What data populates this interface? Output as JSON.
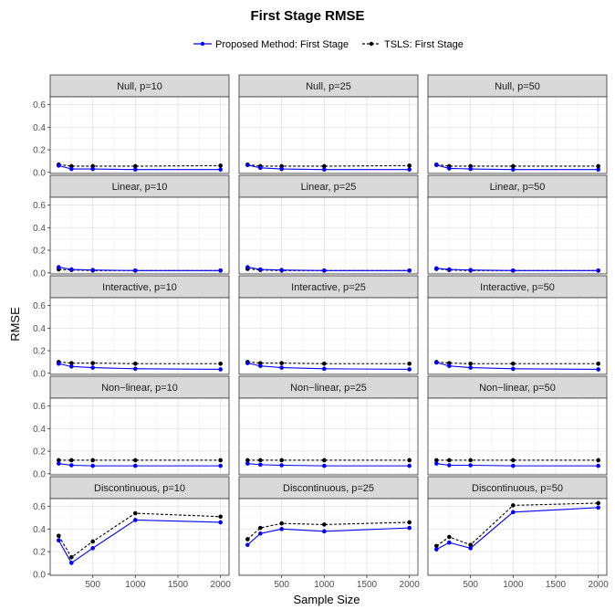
{
  "chart_data": {
    "type": "line",
    "title": "First Stage RMSE",
    "xlabel": "Sample Size",
    "ylabel": "RMSE",
    "legend_position": "top",
    "grid": true,
    "xlim": [
      0,
      2100
    ],
    "ylim": [
      -0.01,
      0.67
    ],
    "x_ticks": [
      500,
      1000,
      1500,
      2000
    ],
    "x_tick_labels": [
      "500",
      "1000",
      "1500",
      "2000"
    ],
    "y_ticks": [
      0,
      0.2,
      0.4,
      0.6
    ],
    "y_tick_labels": [
      "0.0",
      "0.2",
      "0.4",
      "0.6"
    ],
    "x": [
      100,
      250,
      500,
      1000,
      2000
    ],
    "legend": [
      {
        "name": "Proposed Method: First Stage",
        "color": "#0000ff",
        "line_style": "solid"
      },
      {
        "name": "TSLS: First Stage",
        "color": "#000000",
        "line_style": "dashed"
      }
    ],
    "panels": [
      {
        "label": "Null, p=10",
        "series": [
          {
            "name": "Proposed Method: First Stage",
            "values": [
              0.06,
              0.03,
              0.03,
              0.025,
              0.025
            ]
          },
          {
            "name": "TSLS: First Stage",
            "values": [
              0.07,
              0.055,
              0.055,
              0.055,
              0.06
            ]
          }
        ]
      },
      {
        "label": "Null, p=25",
        "series": [
          {
            "name": "Proposed Method: First Stage",
            "values": [
              0.065,
              0.04,
              0.03,
              0.025,
              0.025
            ]
          },
          {
            "name": "TSLS: First Stage",
            "values": [
              0.07,
              0.055,
              0.055,
              0.055,
              0.06
            ]
          }
        ]
      },
      {
        "label": "Null, p=50",
        "series": [
          {
            "name": "Proposed Method: First Stage",
            "values": [
              0.065,
              0.035,
              0.03,
              0.025,
              0.025
            ]
          },
          {
            "name": "TSLS: First Stage",
            "values": [
              0.07,
              0.055,
              0.055,
              0.055,
              0.055
            ]
          }
        ]
      },
      {
        "label": "Linear, p=10",
        "series": [
          {
            "name": "Proposed Method: First Stage",
            "values": [
              0.05,
              0.03,
              0.025,
              0.02,
              0.02
            ]
          },
          {
            "name": "TSLS: First Stage",
            "values": [
              0.03,
              0.025,
              0.02,
              0.02,
              0.02
            ]
          }
        ]
      },
      {
        "label": "Linear, p=25",
        "series": [
          {
            "name": "Proposed Method: First Stage",
            "values": [
              0.05,
              0.03,
              0.025,
              0.02,
              0.02
            ]
          },
          {
            "name": "TSLS: First Stage",
            "values": [
              0.035,
              0.025,
              0.02,
              0.02,
              0.02
            ]
          }
        ]
      },
      {
        "label": "Linear, p=50",
        "series": [
          {
            "name": "Proposed Method: First Stage",
            "values": [
              0.04,
              0.03,
              0.025,
              0.02,
              0.02
            ]
          },
          {
            "name": "TSLS: First Stage",
            "values": [
              0.035,
              0.025,
              0.02,
              0.02,
              0.02
            ]
          }
        ]
      },
      {
        "label": "Interactive, p=10",
        "series": [
          {
            "name": "Proposed Method: First Stage",
            "values": [
              0.085,
              0.06,
              0.05,
              0.04,
              0.035
            ]
          },
          {
            "name": "TSLS: First Stage",
            "values": [
              0.1,
              0.09,
              0.09,
              0.085,
              0.085
            ]
          }
        ]
      },
      {
        "label": "Interactive, p=25",
        "series": [
          {
            "name": "Proposed Method: First Stage",
            "values": [
              0.09,
              0.065,
              0.05,
              0.04,
              0.035
            ]
          },
          {
            "name": "TSLS: First Stage",
            "values": [
              0.1,
              0.09,
              0.09,
              0.085,
              0.085
            ]
          }
        ]
      },
      {
        "label": "Interactive, p=50",
        "series": [
          {
            "name": "Proposed Method: First Stage",
            "values": [
              0.095,
              0.065,
              0.05,
              0.04,
              0.035
            ]
          },
          {
            "name": "TSLS: First Stage",
            "values": [
              0.1,
              0.09,
              0.085,
              0.085,
              0.085
            ]
          }
        ]
      },
      {
        "label": "Non−linear, p=10",
        "series": [
          {
            "name": "Proposed Method: First Stage",
            "values": [
              0.09,
              0.075,
              0.07,
              0.07,
              0.07
            ]
          },
          {
            "name": "TSLS: First Stage",
            "values": [
              0.12,
              0.12,
              0.12,
              0.12,
              0.12
            ]
          }
        ]
      },
      {
        "label": "Non−linear, p=25",
        "series": [
          {
            "name": "Proposed Method: First Stage",
            "values": [
              0.09,
              0.08,
              0.075,
              0.07,
              0.07
            ]
          },
          {
            "name": "TSLS: First Stage",
            "values": [
              0.12,
              0.12,
              0.12,
              0.12,
              0.12
            ]
          }
        ]
      },
      {
        "label": "Non−linear, p=50",
        "series": [
          {
            "name": "Proposed Method: First Stage",
            "values": [
              0.09,
              0.075,
              0.075,
              0.07,
              0.07
            ]
          },
          {
            "name": "TSLS: First Stage",
            "values": [
              0.12,
              0.12,
              0.12,
              0.12,
              0.12
            ]
          }
        ]
      },
      {
        "label": "Discontinuous, p=10",
        "series": [
          {
            "name": "Proposed Method: First Stage",
            "values": [
              0.3,
              0.1,
              0.23,
              0.48,
              0.46
            ]
          },
          {
            "name": "TSLS: First Stage",
            "values": [
              0.34,
              0.15,
              0.29,
              0.54,
              0.51
            ]
          }
        ]
      },
      {
        "label": "Discontinuous, p=25",
        "series": [
          {
            "name": "Proposed Method: First Stage",
            "values": [
              0.26,
              0.36,
              0.4,
              0.38,
              0.41
            ]
          },
          {
            "name": "TSLS: First Stage",
            "values": [
              0.31,
              0.41,
              0.45,
              0.44,
              0.46
            ]
          }
        ]
      },
      {
        "label": "Discontinuous, p=50",
        "series": [
          {
            "name": "Proposed Method: First Stage",
            "values": [
              0.22,
              0.28,
              0.23,
              0.55,
              0.59
            ]
          },
          {
            "name": "TSLS: First Stage",
            "values": [
              0.25,
              0.33,
              0.26,
              0.61,
              0.63
            ]
          }
        ]
      }
    ]
  }
}
